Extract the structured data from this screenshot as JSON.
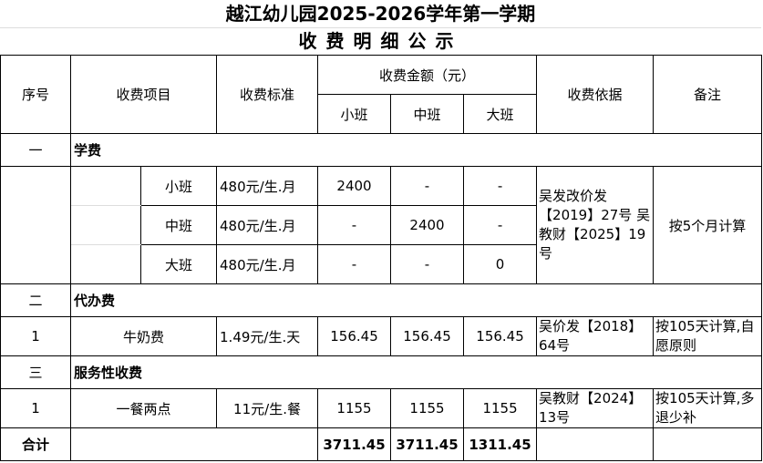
{
  "title": "越江幼儿园2025-2026学年第一学期",
  "subtitle": "收费明细公示",
  "header": {
    "seq": "序号",
    "item": "收费项目",
    "standard": "收费标准",
    "amount": "收费金额（元）",
    "small": "小班",
    "middle": "中班",
    "large": "大班",
    "basis": "收费依据",
    "note": "备注"
  },
  "sections": [
    {
      "seq": "一",
      "name": "学费",
      "rows": [
        {
          "item": "小班",
          "standard": "480元/生.月",
          "small": "2400",
          "middle": "-",
          "large": "-"
        },
        {
          "item": "中班",
          "standard": "480元/生.月",
          "small": "-",
          "middle": "2400",
          "large": "-"
        },
        {
          "item": "大班",
          "standard": "480元/生.月",
          "small": "-",
          "middle": "-",
          "large": "0"
        }
      ],
      "basis": "吴发改价发【2019】27号 吴教财【2025】19号",
      "note": "按5个月计算"
    },
    {
      "seq": "二",
      "name": "代办费",
      "rows": [
        {
          "seq": "1",
          "item": "牛奶费",
          "standard": "1.49元/生.天",
          "small": "156.45",
          "middle": "156.45",
          "large": "156.45",
          "basis": "吴价发【2018】64号",
          "note": "按105天计算,自愿原则"
        }
      ]
    },
    {
      "seq": "三",
      "name": "服务性收费",
      "rows": [
        {
          "seq": "1",
          "item": "一餐两点",
          "standard": "11元/生.餐",
          "small": "1155",
          "middle": "1155",
          "large": "1155",
          "basis": "吴教财【2024】13号",
          "note": "按105天计算,多退少补"
        }
      ]
    }
  ],
  "total": {
    "label": "合计",
    "small": "3711.45",
    "middle": "3711.45",
    "large": "1311.45"
  }
}
